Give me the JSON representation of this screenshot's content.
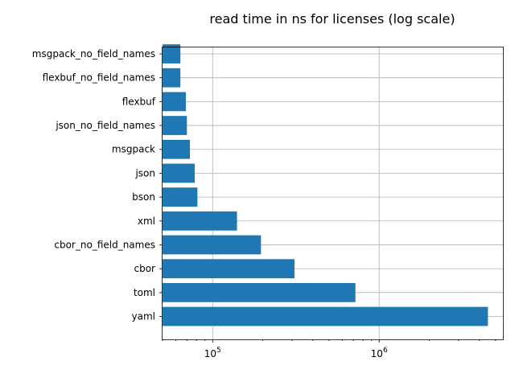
{
  "chart_data": {
    "type": "bar",
    "orientation": "horizontal",
    "title": "read time in ns for licenses (log scale)",
    "xlabel": "",
    "ylabel": "",
    "xscale": "log",
    "xlim": [
      50000,
      5600000
    ],
    "xticks": [
      {
        "value": 100000,
        "base": "10",
        "exp": "5"
      },
      {
        "value": 1000000,
        "base": "10",
        "exp": "6"
      }
    ],
    "grid": true,
    "bar_color": "#1f77b4",
    "categories": [
      "yaml",
      "toml",
      "cbor",
      "cbor_no_field_names",
      "xml",
      "bson",
      "json",
      "msgpack",
      "json_no_field_names",
      "flexbuf",
      "flexbuf_no_field_names",
      "msgpack_no_field_names"
    ],
    "values": [
      4500000,
      720000,
      310000,
      195000,
      140000,
      81000,
      78000,
      73000,
      70000,
      69000,
      64000,
      64000
    ]
  }
}
